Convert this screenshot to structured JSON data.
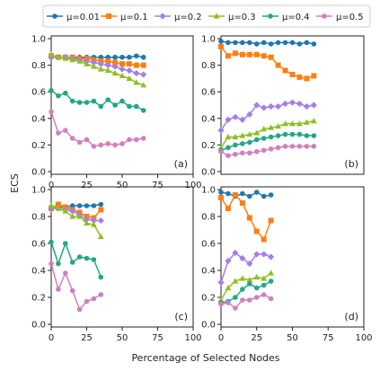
{
  "figure": {
    "ylabel": "ECS",
    "xlabel": "Percentage of Selected Nodes"
  },
  "legend": {
    "placement": "top",
    "entries": [
      {
        "label": "μ=0.01",
        "color": "#1f77b4",
        "marker": "circle"
      },
      {
        "label": "μ=0.1",
        "color": "#ff7f0e",
        "marker": "square"
      },
      {
        "label": "μ=0.2",
        "color": "#a57ee8",
        "marker": "diamond"
      },
      {
        "label": "μ=0.3",
        "color": "#8fbf1f",
        "marker": "triangle"
      },
      {
        "label": "μ=0.4",
        "color": "#22a884",
        "marker": "circle"
      },
      {
        "label": "μ=0.5",
        "color": "#d17fc0",
        "marker": "circle"
      }
    ]
  },
  "chart_data": [
    {
      "type": "line",
      "panel": "(a)",
      "xlim": [
        0,
        100
      ],
      "ylim": [
        0,
        1
      ],
      "xticks": [
        "0",
        "25",
        "50",
        "75",
        "100"
      ],
      "yticks": [
        "0.0",
        "0.2",
        "0.4",
        "0.6",
        "0.8",
        "1.0"
      ],
      "grid": false,
      "series": [
        {
          "name": "μ=0.01",
          "x": [
            0,
            5,
            10,
            15,
            20,
            25,
            30,
            35,
            40,
            45,
            50,
            55,
            60,
            65
          ],
          "y": [
            0.86,
            0.86,
            0.86,
            0.86,
            0.86,
            0.86,
            0.86,
            0.86,
            0.86,
            0.86,
            0.86,
            0.86,
            0.87,
            0.86
          ]
        },
        {
          "name": "μ=0.1",
          "x": [
            0,
            5,
            10,
            15,
            20,
            25,
            30,
            35,
            40,
            45,
            50,
            55,
            60,
            65
          ],
          "y": [
            0.87,
            0.86,
            0.86,
            0.86,
            0.85,
            0.85,
            0.84,
            0.83,
            0.83,
            0.82,
            0.81,
            0.81,
            0.8,
            0.8
          ]
        },
        {
          "name": "μ=0.2",
          "x": [
            0,
            5,
            10,
            15,
            20,
            25,
            30,
            35,
            40,
            45,
            50,
            55,
            60,
            65
          ],
          "y": [
            0.86,
            0.86,
            0.86,
            0.85,
            0.84,
            0.83,
            0.82,
            0.81,
            0.8,
            0.79,
            0.77,
            0.76,
            0.74,
            0.73
          ]
        },
        {
          "name": "μ=0.3",
          "x": [
            0,
            5,
            10,
            15,
            20,
            25,
            30,
            35,
            40,
            45,
            50,
            55,
            60,
            65
          ],
          "y": [
            0.88,
            0.86,
            0.85,
            0.84,
            0.83,
            0.81,
            0.79,
            0.77,
            0.76,
            0.74,
            0.72,
            0.7,
            0.67,
            0.65
          ]
        },
        {
          "name": "μ=0.4",
          "x": [
            0,
            5,
            10,
            15,
            20,
            25,
            30,
            35,
            40,
            45,
            50,
            55,
            60,
            65
          ],
          "y": [
            0.61,
            0.57,
            0.59,
            0.53,
            0.52,
            0.52,
            0.53,
            0.49,
            0.54,
            0.5,
            0.53,
            0.49,
            0.49,
            0.46
          ]
        },
        {
          "name": "μ=0.5",
          "x": [
            0,
            5,
            10,
            15,
            20,
            25,
            30,
            35,
            40,
            45,
            50,
            55,
            60,
            65
          ],
          "y": [
            0.45,
            0.29,
            0.31,
            0.25,
            0.22,
            0.24,
            0.19,
            0.2,
            0.21,
            0.2,
            0.21,
            0.24,
            0.24,
            0.25
          ]
        }
      ]
    },
    {
      "type": "line",
      "panel": "(b)",
      "xlim": [
        0,
        100
      ],
      "ylim": [
        0,
        1
      ],
      "xticks": [],
      "yticks": [
        "0.0",
        "0.2",
        "0.4",
        "0.6",
        "0.8",
        "1.0"
      ],
      "grid": false,
      "series": [
        {
          "name": "μ=0.01",
          "x": [
            0,
            5,
            10,
            15,
            20,
            25,
            30,
            35,
            40,
            45,
            50,
            55,
            60,
            65
          ],
          "y": [
            0.98,
            0.97,
            0.97,
            0.97,
            0.97,
            0.96,
            0.97,
            0.96,
            0.97,
            0.97,
            0.97,
            0.96,
            0.97,
            0.96
          ]
        },
        {
          "name": "μ=0.1",
          "x": [
            0,
            5,
            10,
            15,
            20,
            25,
            30,
            35,
            40,
            45,
            50,
            55,
            60,
            65
          ],
          "y": [
            0.94,
            0.87,
            0.89,
            0.88,
            0.88,
            0.88,
            0.87,
            0.86,
            0.8,
            0.76,
            0.73,
            0.71,
            0.7,
            0.72
          ]
        },
        {
          "name": "μ=0.2",
          "x": [
            0,
            5,
            10,
            15,
            20,
            25,
            30,
            35,
            40,
            45,
            50,
            55,
            60,
            65
          ],
          "y": [
            0.31,
            0.39,
            0.41,
            0.39,
            0.43,
            0.5,
            0.48,
            0.49,
            0.49,
            0.51,
            0.52,
            0.51,
            0.49,
            0.5
          ]
        },
        {
          "name": "μ=0.3",
          "x": [
            0,
            5,
            10,
            15,
            20,
            25,
            30,
            35,
            40,
            45,
            50,
            55,
            60,
            65
          ],
          "y": [
            0.18,
            0.26,
            0.26,
            0.27,
            0.28,
            0.29,
            0.32,
            0.33,
            0.34,
            0.36,
            0.36,
            0.36,
            0.37,
            0.38
          ]
        },
        {
          "name": "μ=0.4",
          "x": [
            0,
            5,
            10,
            15,
            20,
            25,
            30,
            35,
            40,
            45,
            50,
            55,
            60,
            65
          ],
          "y": [
            0.16,
            0.18,
            0.2,
            0.21,
            0.22,
            0.24,
            0.25,
            0.26,
            0.27,
            0.28,
            0.28,
            0.28,
            0.27,
            0.27
          ]
        },
        {
          "name": "μ=0.5",
          "x": [
            0,
            5,
            10,
            15,
            20,
            25,
            30,
            35,
            40,
            45,
            50,
            55,
            60,
            65
          ],
          "y": [
            0.15,
            0.12,
            0.13,
            0.14,
            0.14,
            0.15,
            0.16,
            0.17,
            0.18,
            0.19,
            0.19,
            0.19,
            0.19,
            0.19
          ]
        }
      ]
    },
    {
      "type": "line",
      "panel": "(c)",
      "xlim": [
        0,
        100
      ],
      "ylim": [
        0,
        1
      ],
      "xticks": [
        "0",
        "25",
        "50",
        "75",
        "100"
      ],
      "yticks": [
        "0.0",
        "0.2",
        "0.4",
        "0.6",
        "0.8",
        "1.0"
      ],
      "grid": false,
      "series": [
        {
          "name": "μ=0.01",
          "x": [
            0,
            5,
            10,
            15,
            20,
            25,
            30,
            35
          ],
          "y": [
            0.87,
            0.87,
            0.87,
            0.88,
            0.88,
            0.88,
            0.88,
            0.89
          ]
        },
        {
          "name": "μ=0.1",
          "x": [
            0,
            5,
            10,
            15,
            20,
            25,
            30,
            35
          ],
          "y": [
            0.86,
            0.89,
            0.87,
            0.85,
            0.83,
            0.8,
            0.79,
            0.85
          ]
        },
        {
          "name": "μ=0.2",
          "x": [
            0,
            5,
            10,
            15,
            20,
            25,
            30,
            35
          ],
          "y": [
            0.86,
            0.86,
            0.85,
            0.84,
            0.81,
            0.78,
            0.77,
            0.77
          ]
        },
        {
          "name": "μ=0.3",
          "x": [
            0,
            5,
            10,
            15,
            20,
            25,
            30,
            35
          ],
          "y": [
            0.88,
            0.86,
            0.84,
            0.8,
            0.8,
            0.75,
            0.74,
            0.65
          ]
        },
        {
          "name": "μ=0.4",
          "x": [
            0,
            5,
            10,
            15,
            20,
            25,
            30,
            35
          ],
          "y": [
            0.61,
            0.45,
            0.6,
            0.46,
            0.5,
            0.49,
            0.48,
            0.35
          ]
        },
        {
          "name": "μ=0.5",
          "x": [
            0,
            5,
            10,
            15,
            20,
            25,
            30,
            35
          ],
          "y": [
            0.45,
            0.26,
            0.38,
            0.25,
            0.11,
            0.17,
            0.19,
            0.22
          ]
        }
      ]
    },
    {
      "type": "line",
      "panel": "(d)",
      "xlim": [
        0,
        100
      ],
      "ylim": [
        0,
        1
      ],
      "xticks": [
        "0",
        "25",
        "50",
        "75",
        "100"
      ],
      "yticks": [
        "0.0",
        "0.2",
        "0.4",
        "0.6",
        "0.8",
        "1.0"
      ],
      "grid": false,
      "series": [
        {
          "name": "μ=0.01",
          "x": [
            0,
            5,
            10,
            15,
            20,
            25,
            30,
            35
          ],
          "y": [
            0.98,
            0.97,
            0.95,
            0.97,
            0.95,
            0.98,
            0.95,
            0.96
          ]
        },
        {
          "name": "μ=0.1",
          "x": [
            0,
            5,
            10,
            15,
            20,
            25,
            30,
            35
          ],
          "y": [
            0.94,
            0.86,
            0.96,
            0.9,
            0.79,
            0.69,
            0.63,
            0.77
          ]
        },
        {
          "name": "μ=0.2",
          "x": [
            0,
            5,
            10,
            15,
            20,
            25,
            30,
            35
          ],
          "y": [
            0.31,
            0.47,
            0.53,
            0.49,
            0.45,
            0.52,
            0.52,
            0.5
          ]
        },
        {
          "name": "μ=0.3",
          "x": [
            0,
            5,
            10,
            15,
            20,
            25,
            30,
            35
          ],
          "y": [
            0.18,
            0.27,
            0.32,
            0.34,
            0.33,
            0.35,
            0.34,
            0.38
          ]
        },
        {
          "name": "μ=0.4",
          "x": [
            0,
            5,
            10,
            15,
            20,
            25,
            30,
            35
          ],
          "y": [
            0.16,
            0.17,
            0.2,
            0.26,
            0.3,
            0.27,
            0.29,
            0.32
          ]
        },
        {
          "name": "μ=0.5",
          "x": [
            0,
            5,
            10,
            15,
            20,
            25,
            30,
            35
          ],
          "y": [
            0.15,
            0.16,
            0.12,
            0.18,
            0.18,
            0.2,
            0.22,
            0.19
          ]
        }
      ]
    }
  ]
}
